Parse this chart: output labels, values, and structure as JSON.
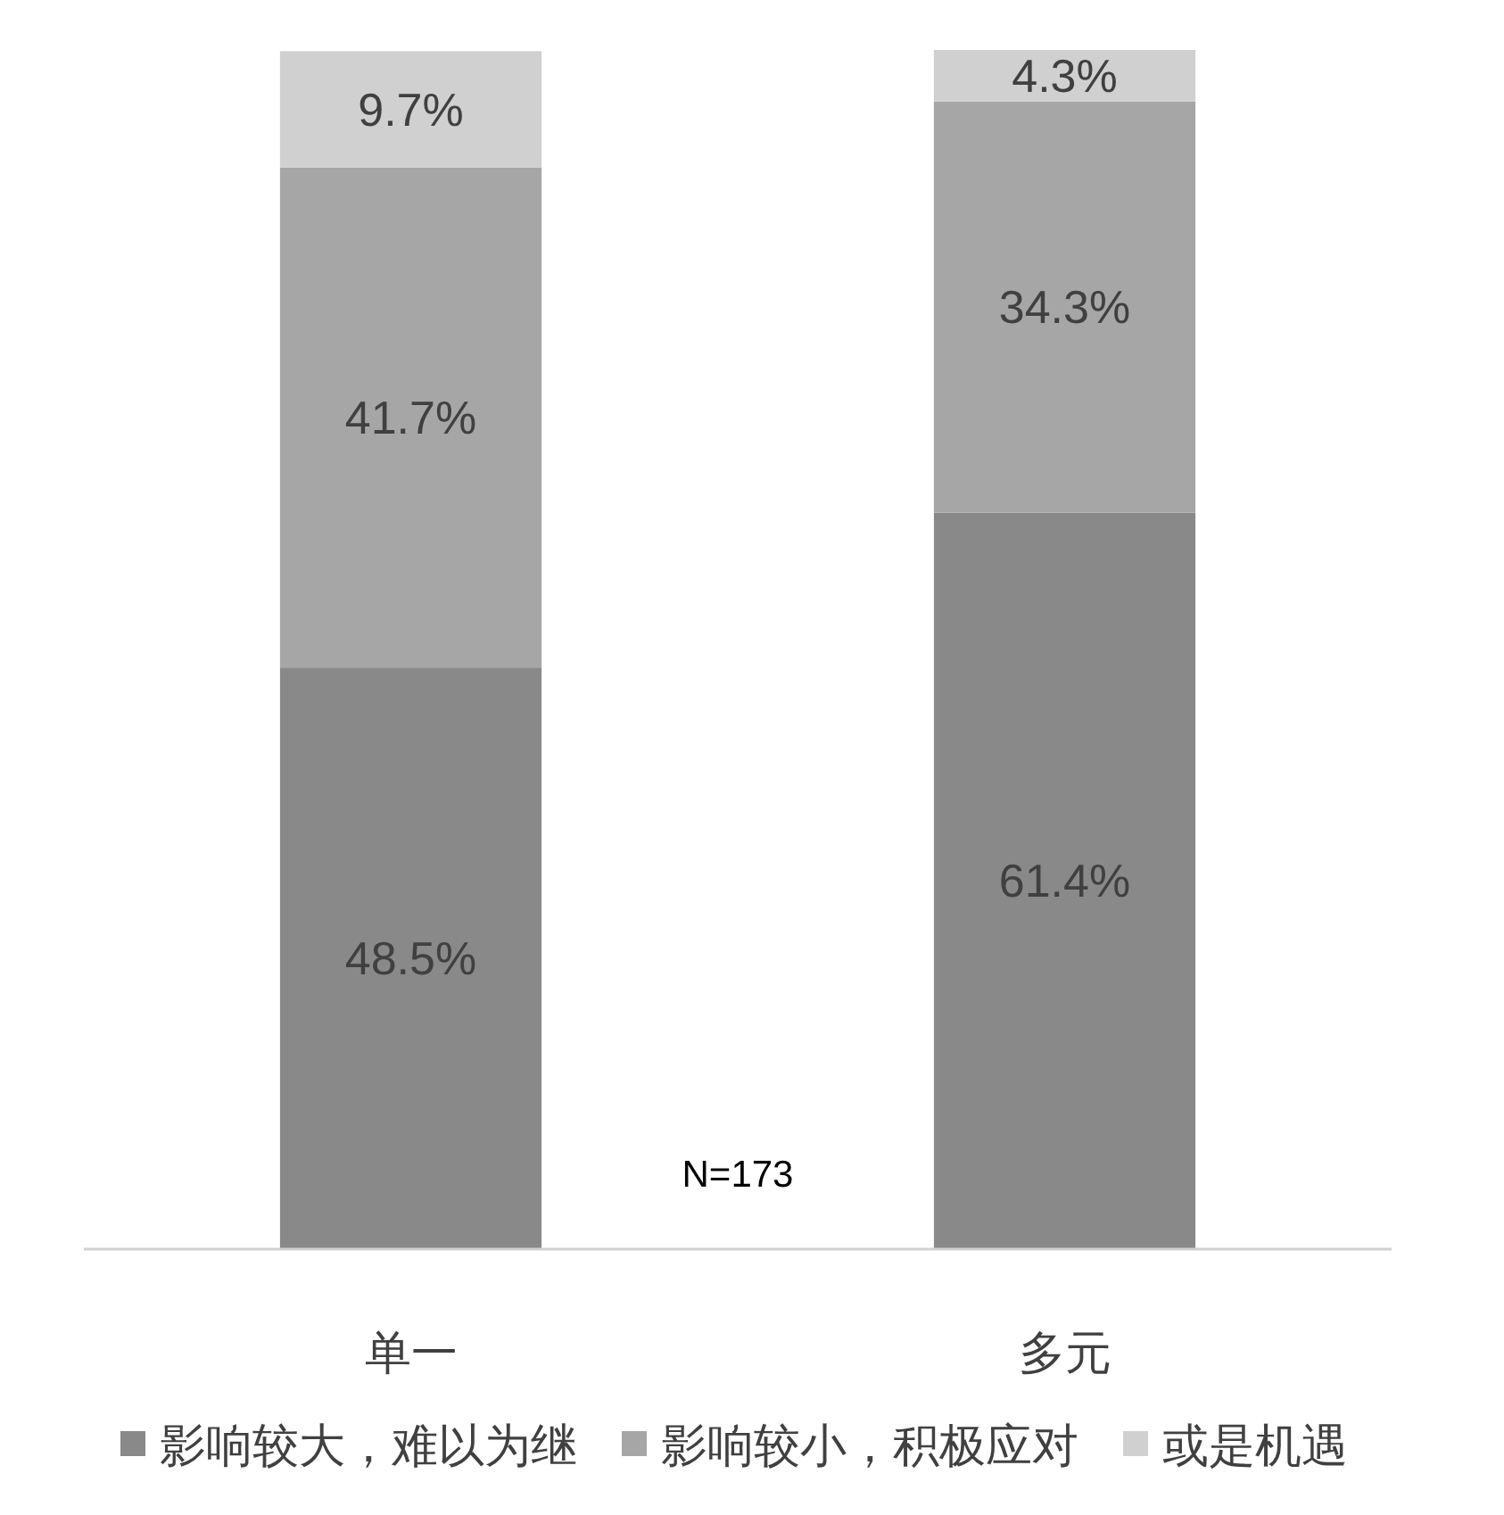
{
  "chart_data": {
    "type": "bar",
    "stacked": true,
    "legend": "bottom",
    "categories": [
      "单一",
      "多元"
    ],
    "series": [
      {
        "name": "影响较大，难以为继",
        "color": "#898989",
        "values": [
          48.5,
          61.4
        ],
        "value_labels": [
          "48.5%",
          "61.4%"
        ]
      },
      {
        "name": "影响较小，积极应对",
        "color": "#a6a6a6",
        "values": [
          41.7,
          34.3
        ],
        "value_labels": [
          "41.7%",
          "34.3%"
        ]
      },
      {
        "name": "或是机遇",
        "color": "#d0d0d0",
        "values": [
          9.7,
          4.3
        ],
        "value_labels": [
          "9.7%",
          "4.3%"
        ]
      }
    ],
    "annotations": [
      "N=173"
    ]
  }
}
